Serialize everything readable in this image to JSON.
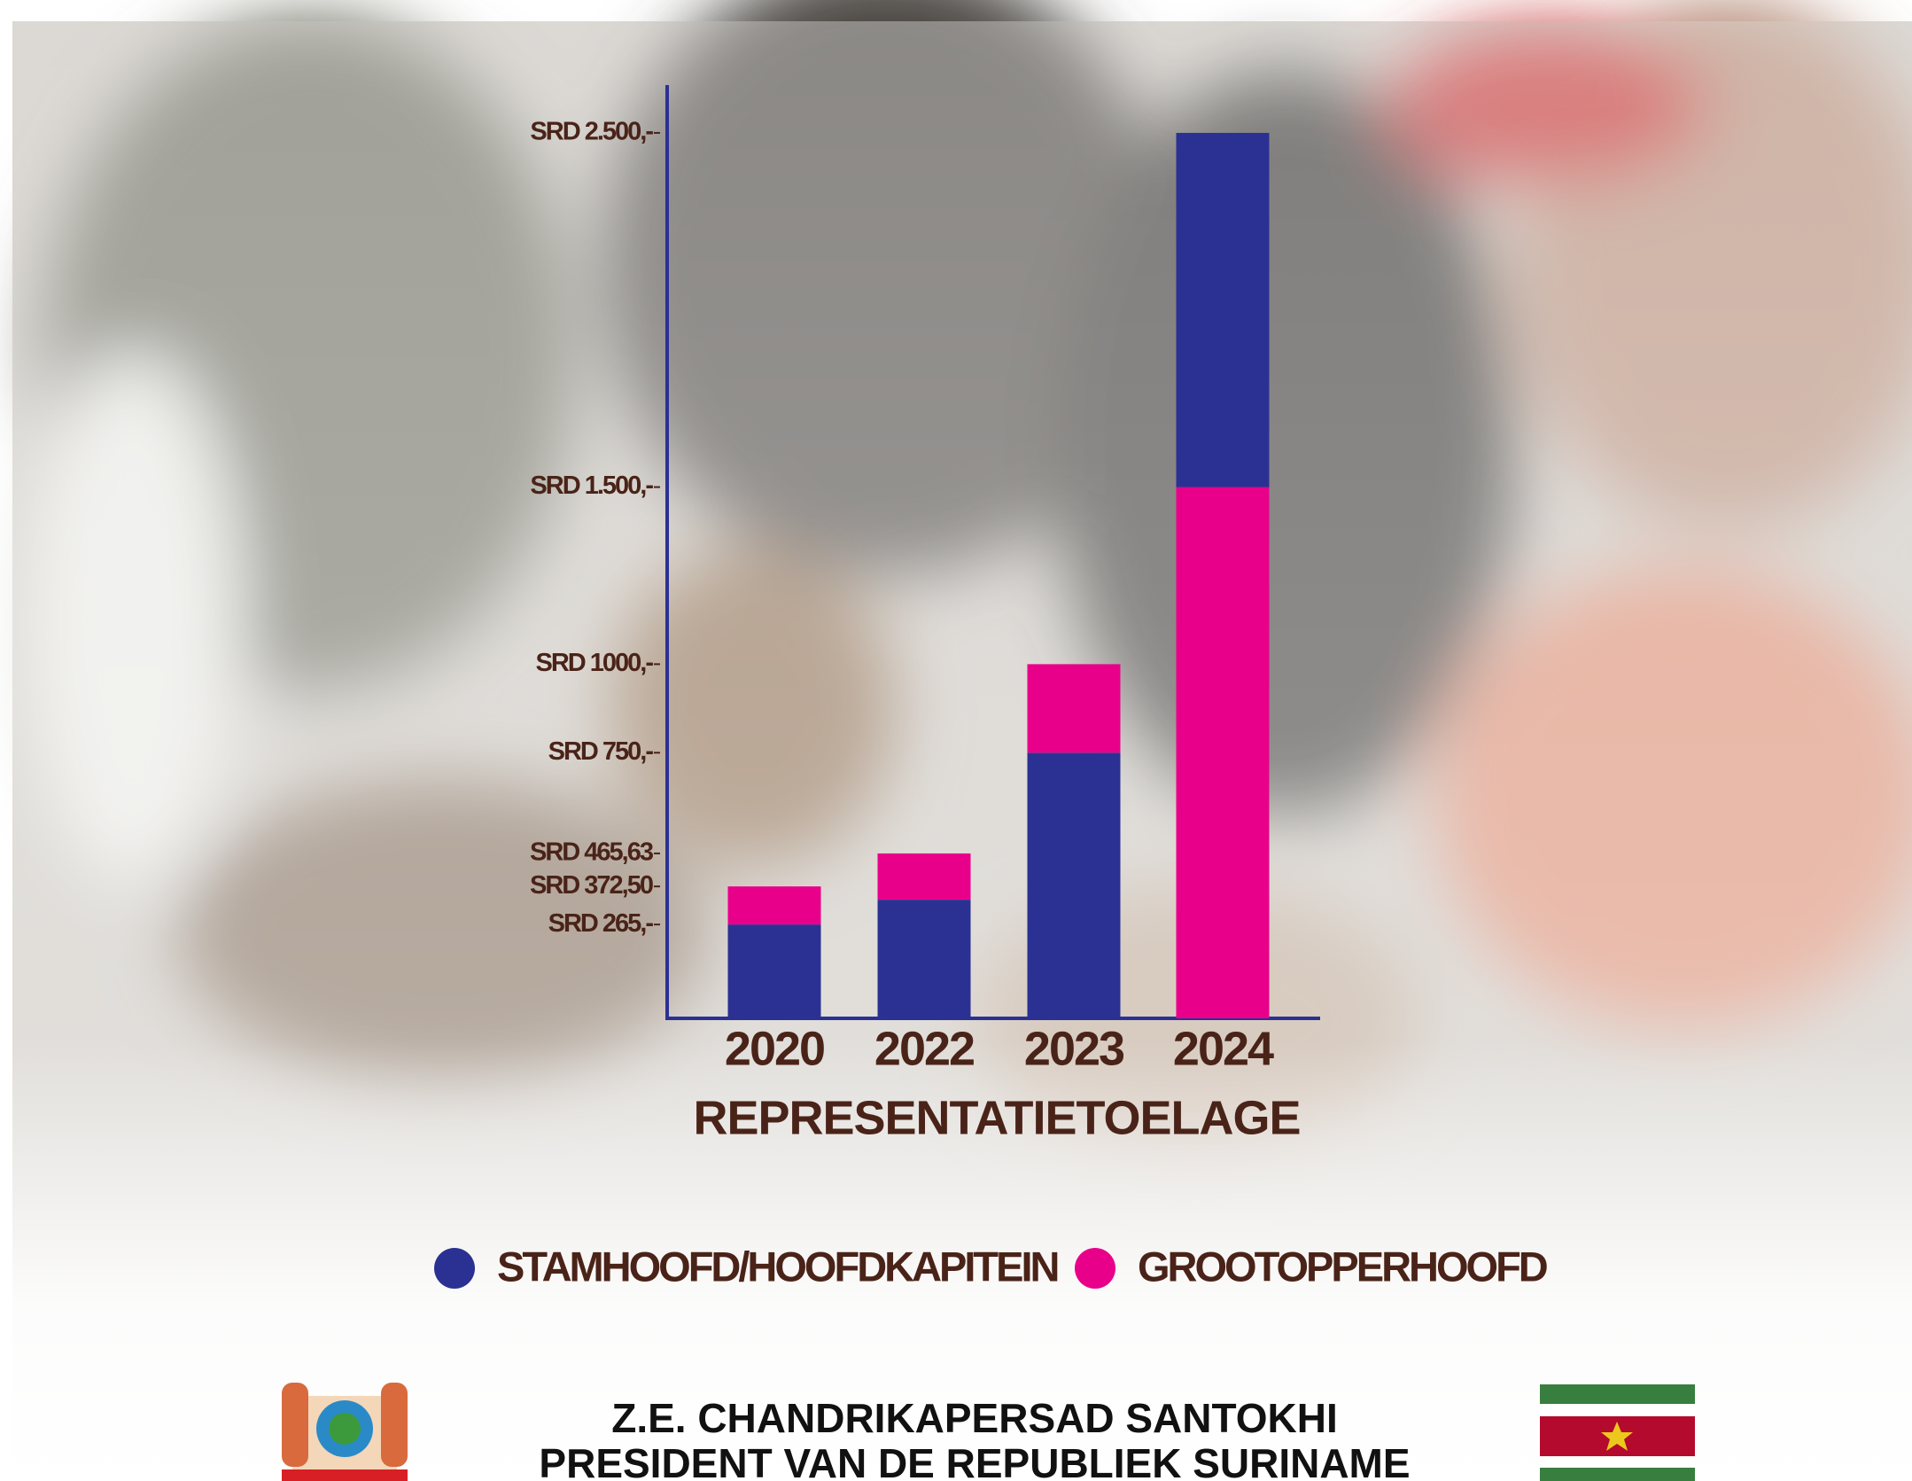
{
  "chart_data": {
    "type": "stacked_bar",
    "title": "REPRESENTATIETOELAGE",
    "categories": [
      "2020",
      "2022",
      "2023",
      "2024"
    ],
    "series": [
      {
        "name": "STAMHOOFD/HOOFDKAPITEIN",
        "color": "#2b3192",
        "values": [
          265,
          335,
          750,
          1000
        ]
      },
      {
        "name": "GROOTOPPERHOOFD",
        "color": "#e8008a",
        "values": [
          107.5,
          130.63,
          250,
          1500
        ]
      }
    ],
    "stack_order": [
      [
        0,
        1
      ],
      [
        0,
        1
      ],
      [
        0,
        1
      ],
      [
        1,
        0
      ]
    ],
    "ylim": [
      0,
      2635
    ],
    "yticks": [
      {
        "value": 2500,
        "label": "SRD 2.500,-"
      },
      {
        "value": 1500,
        "label": "SRD 1.500,-"
      },
      {
        "value": 1000,
        "label": "SRD 1000,-"
      },
      {
        "value": 750,
        "label": "SRD 750,-"
      },
      {
        "value": 465.63,
        "label": "SRD 465,63"
      },
      {
        "value": 372.5,
        "label": "SRD 372,50"
      },
      {
        "value": 265,
        "label": "SRD 265,-"
      }
    ],
    "legend": "bottom"
  },
  "footer": {
    "line1": "Z.E. CHANDRIKAPERSAD SANTOKHI",
    "line2": "PRESIDENT VAN DE REPUBLIEK SURINAME"
  }
}
